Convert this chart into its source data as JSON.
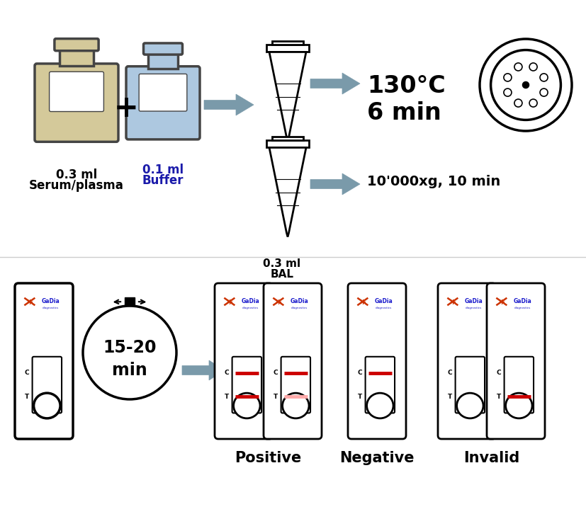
{
  "bg_color": "#ffffff",
  "bottle1_color": "#d4c99a",
  "bottle2_color": "#adc8e0",
  "arrow_color": "#7a9aaa",
  "tube_outline": "#000000",
  "tube_fill": "#000000",
  "card_outline": "#000000",
  "card_bg": "#ffffff",
  "red_line": "#cc0000",
  "pink_line": "#ffaaaa",
  "text_color": "#000000",
  "blue_text": "#1a1aaa",
  "label1_line1": "0.3 ml",
  "label1_line2": "Serum/plasma",
  "label2_line1": "0.1 ml",
  "label2_line2": "Buffer",
  "label3_line1": "130°C",
  "label3_line2": "6 min",
  "label4": "10'000xg, 10 min",
  "label5_line1": "0.3 ml",
  "label5_line2": "BAL",
  "label6_line1": "15-20",
  "label6_line2": "min",
  "pos_label": "Positive",
  "neg_label": "Negative",
  "inv_label": "Invalid",
  "figw": 8.28,
  "figh": 7.26,
  "dpi": 100
}
